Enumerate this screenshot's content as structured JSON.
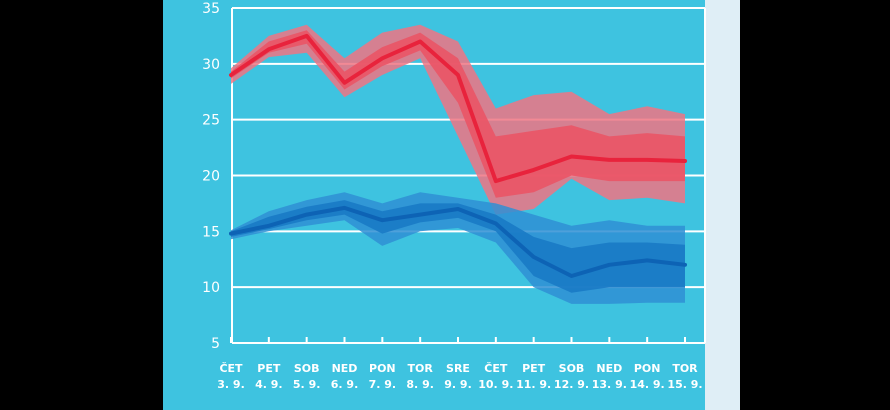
{
  "chart_data": {
    "type": "line",
    "ylim": [
      5,
      35
    ],
    "yticks": [
      5,
      10,
      15,
      20,
      25,
      30,
      35
    ],
    "grid": true,
    "categories": [
      [
        "ČET",
        "3. 9."
      ],
      [
        "PET",
        "4. 9."
      ],
      [
        "SOB",
        "5. 9."
      ],
      [
        "NED",
        "6. 9."
      ],
      [
        "PON",
        "7. 9."
      ],
      [
        "TOR",
        "8. 9."
      ],
      [
        "SRE",
        "9. 9."
      ],
      [
        "ČET",
        "10. 9."
      ],
      [
        "PET",
        "11. 9."
      ],
      [
        "SOB",
        "12. 9."
      ],
      [
        "NED",
        "13. 9."
      ],
      [
        "PON",
        "14. 9."
      ],
      [
        "TOR",
        "15. 9."
      ]
    ],
    "series": [
      {
        "color": "#e8233c",
        "band_outer_color": "#f07483",
        "band_inner_color": "#ea5466",
        "values": [
          29.0,
          31.3,
          32.5,
          28.3,
          30.5,
          32.0,
          29.0,
          19.5,
          20.5,
          21.7,
          21.4,
          21.4,
          21.3
        ],
        "outer_upper": [
          29.6,
          32.5,
          33.5,
          30.5,
          32.8,
          33.5,
          32.0,
          26.0,
          27.2,
          27.5,
          25.5,
          26.2,
          25.5
        ],
        "outer_lower": [
          28.2,
          30.6,
          31.0,
          27.0,
          29.0,
          30.5,
          23.5,
          16.5,
          17.0,
          19.7,
          17.8,
          18.0,
          17.5
        ],
        "inner_upper": [
          29.3,
          32.0,
          33.0,
          29.3,
          31.5,
          32.8,
          30.5,
          23.5,
          24.0,
          24.5,
          23.5,
          23.8,
          23.5
        ],
        "inner_lower": [
          28.7,
          31.0,
          31.8,
          27.7,
          29.8,
          31.2,
          26.5,
          18.0,
          18.5,
          20.0,
          19.5,
          19.5,
          19.5
        ]
      },
      {
        "color": "#0d63b5",
        "band_outer_color": "#2f8fd3",
        "band_inner_color": "#1a7ac5",
        "values": [
          14.8,
          15.5,
          16.5,
          17.1,
          16.0,
          16.5,
          17.0,
          15.7,
          12.7,
          11.0,
          12.0,
          12.4,
          12.0
        ],
        "outer_upper": [
          15.1,
          16.8,
          17.8,
          18.5,
          17.5,
          18.5,
          18.0,
          17.5,
          16.5,
          15.5,
          16.0,
          15.5,
          15.5
        ],
        "outer_lower": [
          14.3,
          15.0,
          15.5,
          16.0,
          13.7,
          15.0,
          15.3,
          14.0,
          10.0,
          8.5,
          8.5,
          8.6,
          8.6
        ],
        "inner_upper": [
          15.0,
          16.3,
          17.2,
          17.8,
          16.8,
          17.5,
          17.5,
          16.5,
          14.5,
          13.5,
          14.0,
          14.0,
          13.8
        ],
        "inner_lower": [
          14.5,
          15.2,
          16.0,
          16.5,
          14.8,
          15.8,
          16.2,
          15.0,
          11.0,
          9.5,
          10.0,
          10.0,
          10.0
        ]
      }
    ],
    "colors": {
      "plot_background": "#3ec3e0",
      "grid": "#ffffff",
      "tick_text": "#ffffff"
    }
  }
}
